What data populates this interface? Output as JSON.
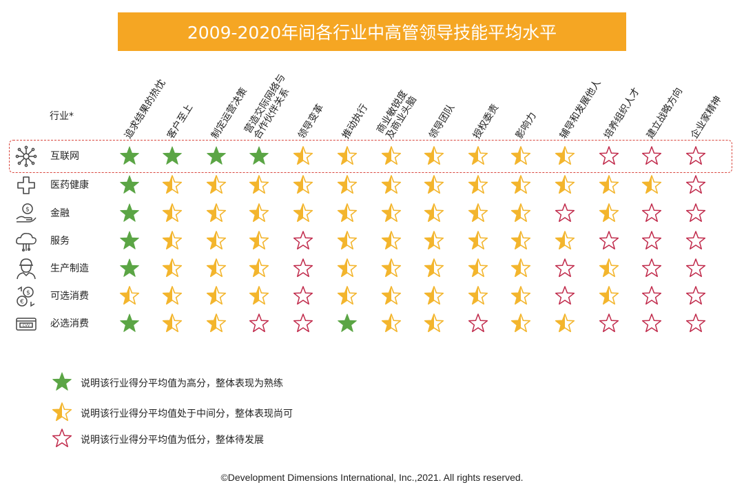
{
  "colors": {
    "title_bg": "#f5a623",
    "full": "#5ba545",
    "half": "#f3b52d",
    "empty": "#c0294a",
    "highlight": "#d9443c"
  },
  "chart_data": {
    "type": "table",
    "title": "2009-2020年间各行业中高管领导技能平均水平",
    "row_header": "行业*",
    "columns": [
      "追求结果的热忱",
      "客户至上",
      "制定运营决策",
      "营造交际网络与\n合作伙伴关系",
      "领导变革",
      "推动执行",
      "商业敏锐度\n及商业头脑",
      "领导团队",
      "授权委责",
      "影响力",
      "辅导和发展他人",
      "培养组织人才",
      "建立战略方向",
      "企业家精神"
    ],
    "rows": [
      {
        "industry": "互联网",
        "icon": "network-icon",
        "highlighted": true,
        "levels": [
          "full",
          "full",
          "full",
          "full",
          "half",
          "half",
          "half",
          "half",
          "half",
          "half",
          "half",
          "empty",
          "empty",
          "empty"
        ]
      },
      {
        "industry": "医药健康",
        "icon": "medical-cross-icon",
        "levels": [
          "full",
          "half",
          "half",
          "half",
          "half",
          "half",
          "half",
          "half",
          "half",
          "half",
          "half",
          "half",
          "half",
          "empty"
        ]
      },
      {
        "industry": "金融",
        "icon": "finance-hand-coin-icon",
        "levels": [
          "full",
          "half",
          "half",
          "half",
          "half",
          "half",
          "half",
          "half",
          "half",
          "half",
          "empty",
          "half",
          "empty",
          "empty"
        ]
      },
      {
        "industry": "服务",
        "icon": "cloud-service-icon",
        "levels": [
          "full",
          "half",
          "half",
          "half",
          "empty",
          "half",
          "half",
          "half",
          "half",
          "half",
          "half",
          "empty",
          "empty",
          "empty"
        ]
      },
      {
        "industry": "生产制造",
        "icon": "worker-icon",
        "levels": [
          "full",
          "half",
          "half",
          "half",
          "empty",
          "half",
          "half",
          "half",
          "half",
          "half",
          "empty",
          "half",
          "empty",
          "empty"
        ]
      },
      {
        "industry": "可选消费",
        "icon": "currency-exchange-icon",
        "levels": [
          "half",
          "half",
          "half",
          "half",
          "empty",
          "half",
          "half",
          "half",
          "half",
          "half",
          "empty",
          "half",
          "empty",
          "empty"
        ]
      },
      {
        "industry": "必选消费",
        "icon": "credit-card-cvv-icon",
        "levels": [
          "full",
          "half",
          "half",
          "empty",
          "empty",
          "full",
          "half",
          "half",
          "empty",
          "half",
          "half",
          "empty",
          "empty",
          "empty"
        ]
      }
    ],
    "levels_legend": [
      {
        "level": "full",
        "text": "说明该行业得分平均值为高分，整体表现为熟练"
      },
      {
        "level": "half",
        "text": "说明该行业得分平均值处于中间分，整体表现尚可"
      },
      {
        "level": "empty",
        "text": "说明该行业得分平均值为低分，整体待发展"
      }
    ]
  },
  "copyright": "©Development Dimensions International, Inc.,2021. All rights reserved."
}
